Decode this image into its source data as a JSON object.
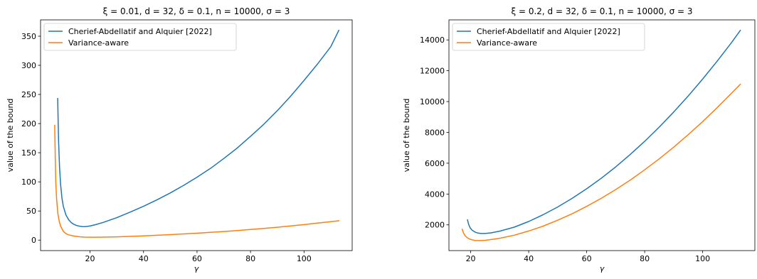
{
  "chart_data": [
    {
      "type": "line",
      "title": "ξ = 0.01, d = 32, δ = 0.1, n = 10000, σ = 3",
      "xlabel": "γ",
      "ylabel": "value of the bound",
      "xlim": [
        1.5,
        118
      ],
      "ylim": [
        -18,
        378
      ],
      "xticks": [
        20,
        40,
        60,
        80,
        100
      ],
      "yticks": [
        0,
        50,
        100,
        150,
        200,
        250,
        300,
        350
      ],
      "grid": false,
      "legend_position": "top-left",
      "series": [
        {
          "name": "Cherief-Abdellatif and Alquier [2022]",
          "color": "#1f77b4",
          "points": [
            [
              7.9,
              243
            ],
            [
              8.2,
              175
            ],
            [
              8.6,
              125
            ],
            [
              9,
              95
            ],
            [
              9.5,
              72
            ],
            [
              10,
              58
            ],
            [
              11,
              43
            ],
            [
              12,
              35
            ],
            [
              13,
              30
            ],
            [
              14,
              27
            ],
            [
              15,
              25
            ],
            [
              16,
              24
            ],
            [
              17,
              23.3
            ],
            [
              18,
              23.2
            ],
            [
              19,
              23.6
            ],
            [
              20,
              24.3
            ],
            [
              22,
              26.5
            ],
            [
              25,
              30.5
            ],
            [
              30,
              38.5
            ],
            [
              35,
              48
            ],
            [
              40,
              58
            ],
            [
              45,
              69
            ],
            [
              50,
              81
            ],
            [
              55,
              94
            ],
            [
              60,
              108
            ],
            [
              65,
              123
            ],
            [
              70,
              140
            ],
            [
              75,
              158
            ],
            [
              80,
              178
            ],
            [
              85,
              199
            ],
            [
              90,
              222
            ],
            [
              95,
              247
            ],
            [
              100,
              274
            ],
            [
              105,
              302
            ],
            [
              110,
              332
            ],
            [
              113,
              360
            ]
          ]
        },
        {
          "name": "Variance-aware",
          "color": "#ff7f0e",
          "points": [
            [
              6.8,
              197
            ],
            [
              7,
              140
            ],
            [
              7.2,
              100
            ],
            [
              7.5,
              70
            ],
            [
              8,
              45
            ],
            [
              8.5,
              32
            ],
            [
              9,
              24
            ],
            [
              10,
              15
            ],
            [
              11,
              11
            ],
            [
              12,
              9
            ],
            [
              14,
              7
            ],
            [
              16,
              5.7
            ],
            [
              18,
              5.2
            ],
            [
              20,
              5
            ],
            [
              22,
              5
            ],
            [
              25,
              5.1
            ],
            [
              30,
              5.6
            ],
            [
              35,
              6.4
            ],
            [
              40,
              7.3
            ],
            [
              45,
              8.3
            ],
            [
              50,
              9.4
            ],
            [
              55,
              10.6
            ],
            [
              60,
              11.9
            ],
            [
              65,
              13.3
            ],
            [
              70,
              14.8
            ],
            [
              75,
              16.4
            ],
            [
              80,
              18.2
            ],
            [
              85,
              20.1
            ],
            [
              90,
              22.1
            ],
            [
              95,
              24.3
            ],
            [
              100,
              26.6
            ],
            [
              105,
              29.1
            ],
            [
              110,
              31.6
            ],
            [
              113,
              33.2
            ]
          ]
        }
      ]
    },
    {
      "type": "line",
      "title": "ξ = 0.2, d = 32, δ = 0.1, n = 10000, σ = 3",
      "xlabel": "γ",
      "ylabel": "value of the bound",
      "xlim": [
        12.5,
        118
      ],
      "ylim": [
        330,
        15300
      ],
      "xticks": [
        20,
        40,
        60,
        80,
        100
      ],
      "yticks": [
        2000,
        4000,
        6000,
        8000,
        10000,
        12000,
        14000
      ],
      "grid": false,
      "legend_position": "top-left",
      "series": [
        {
          "name": "Cherief-Abdellatif and Alquier [2022]",
          "color": "#1f77b4",
          "points": [
            [
              18.9,
              2320
            ],
            [
              19.3,
              2030
            ],
            [
              19.8,
              1810
            ],
            [
              20.5,
              1650
            ],
            [
              21.5,
              1530
            ],
            [
              22.5,
              1470
            ],
            [
              23.5,
              1440
            ],
            [
              25,
              1440
            ],
            [
              27,
              1480
            ],
            [
              30,
              1590
            ],
            [
              35,
              1850
            ],
            [
              40,
              2220
            ],
            [
              45,
              2660
            ],
            [
              50,
              3160
            ],
            [
              55,
              3720
            ],
            [
              60,
              4340
            ],
            [
              65,
              5020
            ],
            [
              70,
              5760
            ],
            [
              75,
              6560
            ],
            [
              80,
              7420
            ],
            [
              85,
              8340
            ],
            [
              90,
              9320
            ],
            [
              95,
              10360
            ],
            [
              100,
              11460
            ],
            [
              105,
              12620
            ],
            [
              110,
              13840
            ],
            [
              113,
              14620
            ]
          ]
        },
        {
          "name": "Variance-aware",
          "color": "#ff7f0e",
          "points": [
            [
              17.1,
              1710
            ],
            [
              17.5,
              1480
            ],
            [
              18,
              1310
            ],
            [
              18.7,
              1180
            ],
            [
              19.5,
              1090
            ],
            [
              20.5,
              1030
            ],
            [
              21.5,
              990
            ],
            [
              23,
              980
            ],
            [
              25,
              1000
            ],
            [
              28,
              1070
            ],
            [
              30,
              1130
            ],
            [
              35,
              1330
            ],
            [
              40,
              1600
            ],
            [
              45,
              1920
            ],
            [
              50,
              2300
            ],
            [
              55,
              2720
            ],
            [
              60,
              3200
            ],
            [
              65,
              3720
            ],
            [
              70,
              4290
            ],
            [
              75,
              4900
            ],
            [
              80,
              5570
            ],
            [
              85,
              6280
            ],
            [
              90,
              7040
            ],
            [
              95,
              7850
            ],
            [
              100,
              8700
            ],
            [
              105,
              9600
            ],
            [
              110,
              10550
            ],
            [
              113,
              11120
            ]
          ]
        }
      ]
    }
  ]
}
